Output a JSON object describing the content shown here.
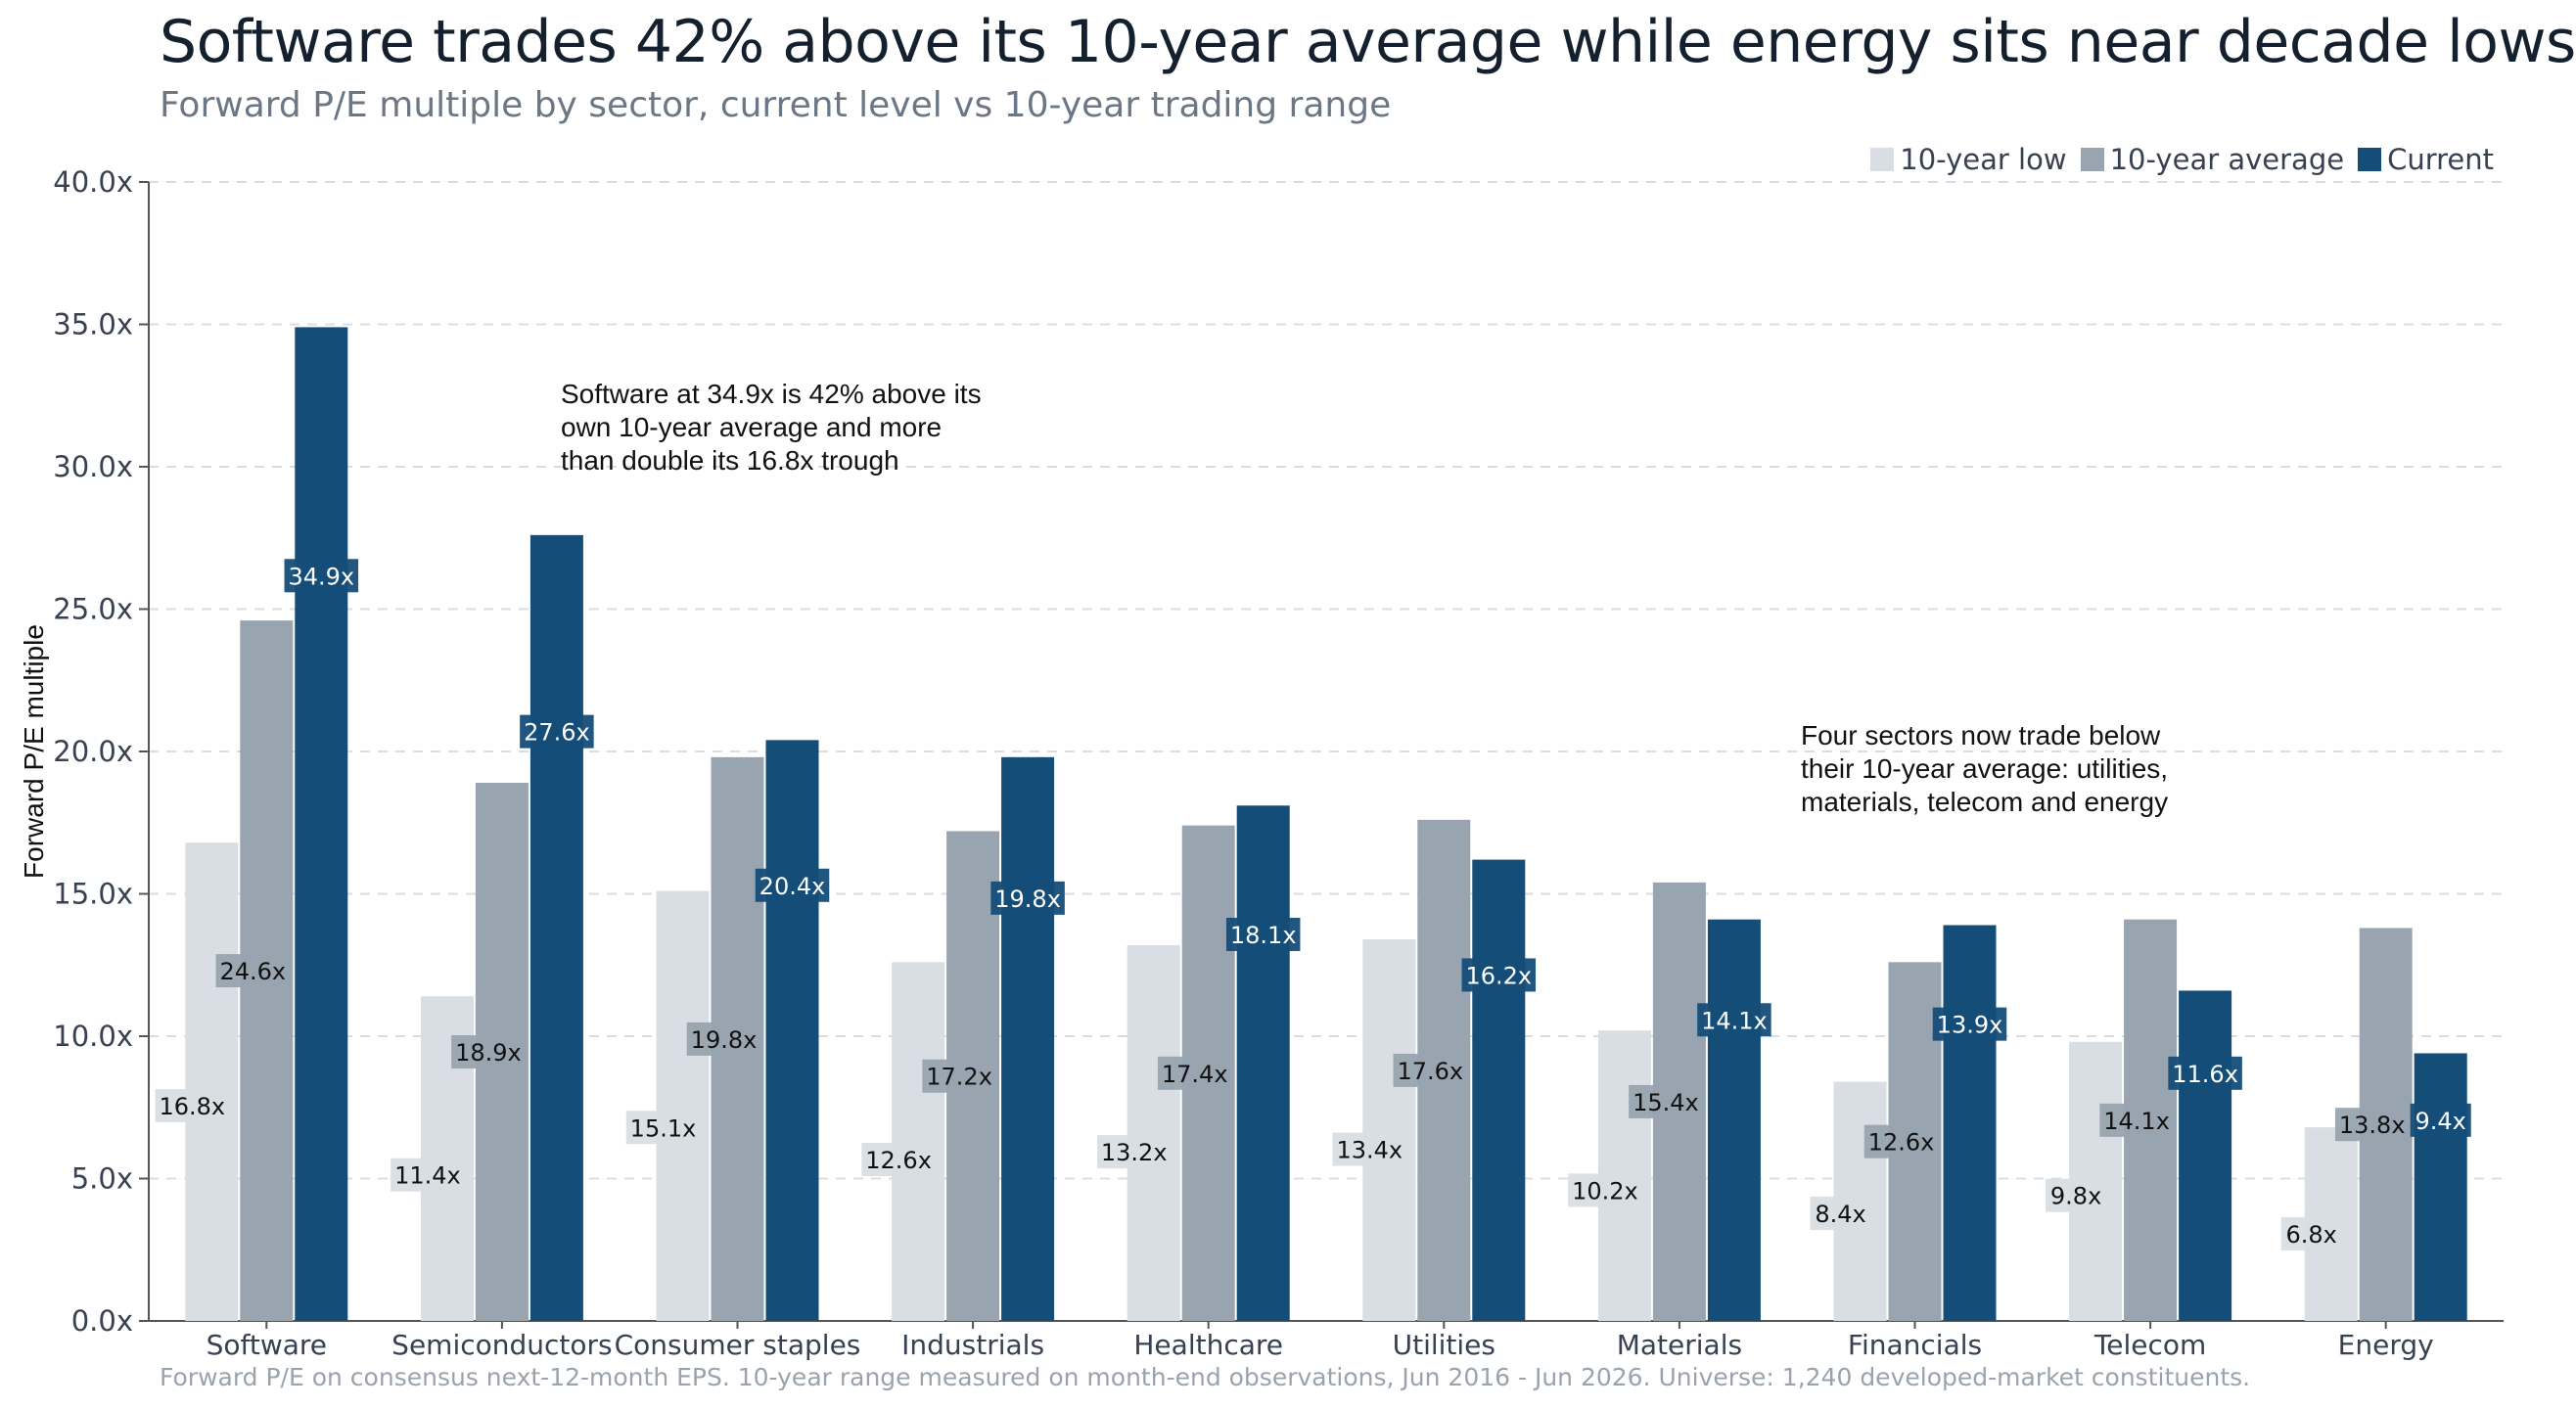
{
  "title": "Software trades 42% above its 10-year average while energy sits near decade lows",
  "subtitle": "Forward P/E multiple by sector, current level vs 10-year trading range",
  "footnote": "Forward P/E on consensus next-12-month EPS. 10-year range measured on month-end observations, Jun 2016 - Jun 2026. Universe: 1,240 developed-market constituents.",
  "annotations": {
    "software": [
      "Software at 34.9x is 42% above its",
      "own 10-year average and more",
      "than double its 16.8x trough"
    ],
    "below_average": [
      "Four sectors now trade below",
      "their 10-year average: utilities,",
      "materials, telecom and energy"
    ]
  },
  "colors": {
    "low": "#d8dee3",
    "average": "#98a4af",
    "current": "#144d78",
    "grid": "#d9dde1",
    "axis": "#555555"
  },
  "chart_data": {
    "type": "bar",
    "title": "Software trades 42% above its 10-year average while energy sits near decade lows",
    "subtitle": "Forward P/E multiple by sector, current level vs 10-year trading range",
    "xlabel": "",
    "ylabel": "Forward P/E multiple",
    "ylim": [
      0,
      40
    ],
    "yticks": [
      "0.0x",
      "5.0x",
      "10.0x",
      "15.0x",
      "20.0x",
      "25.0x",
      "30.0x",
      "35.0x",
      "40.0x"
    ],
    "grid": true,
    "legend_position": "top-right",
    "categories": [
      "Software",
      "Semiconductors",
      "Consumer staples",
      "Industrials",
      "Healthcare",
      "Utilities",
      "Materials",
      "Financials",
      "Telecom",
      "Energy"
    ],
    "series": [
      {
        "name": "10-year low",
        "values": [
          16.8,
          11.4,
          15.1,
          12.6,
          13.2,
          13.4,
          10.2,
          8.4,
          9.8,
          6.8
        ],
        "labels": [
          "16.8x",
          "11.4x",
          "15.1x",
          "12.6x",
          "13.2x",
          "13.4x",
          "10.2x",
          "8.4x",
          "9.8x",
          "6.8x"
        ]
      },
      {
        "name": "10-year average",
        "values": [
          24.6,
          18.9,
          19.8,
          17.2,
          17.4,
          17.6,
          15.4,
          12.6,
          14.1,
          13.8
        ],
        "labels": [
          "24.6x",
          "18.9x",
          "19.8x",
          "17.2x",
          "17.4x",
          "17.6x",
          "15.4x",
          "12.6x",
          "14.1x",
          "13.8x"
        ]
      },
      {
        "name": "Current",
        "values": [
          34.9,
          27.6,
          20.4,
          19.8,
          18.1,
          16.2,
          14.1,
          13.9,
          11.6,
          9.4
        ],
        "labels": [
          "34.9x",
          "27.6x",
          "20.4x",
          "19.8x",
          "18.1x",
          "16.2x",
          "14.1x",
          "13.9x",
          "11.6x",
          "9.4x"
        ]
      }
    ]
  }
}
